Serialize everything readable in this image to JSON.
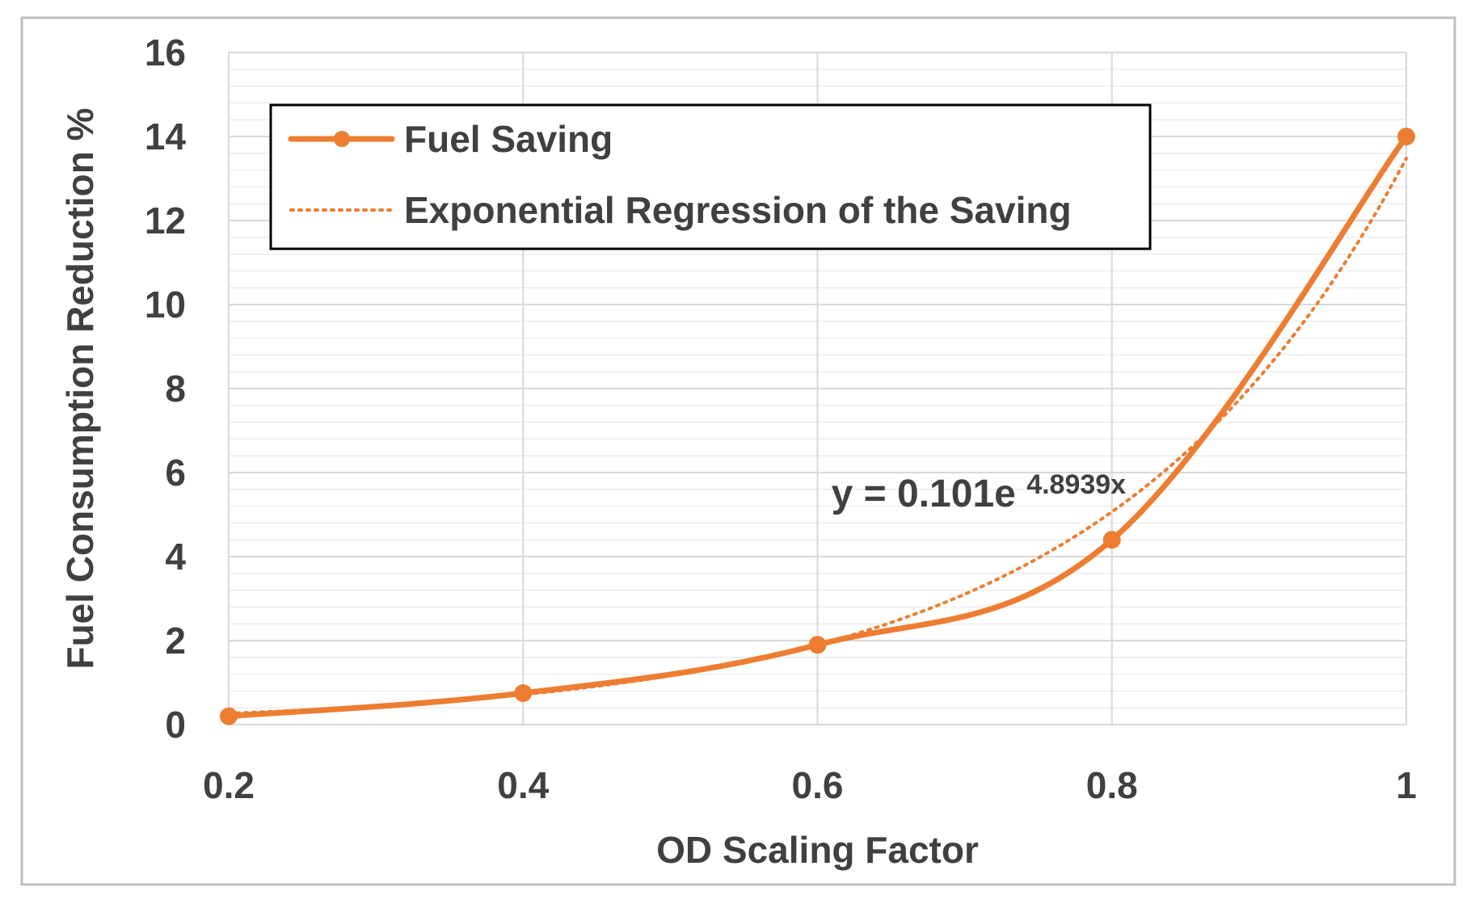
{
  "chart_data": {
    "type": "line",
    "title": "",
    "xlabel": "OD Scaling Factor",
    "ylabel": "Fuel Consumption Reduction %",
    "xlim": [
      0.2,
      1
    ],
    "ylim": [
      0,
      16
    ],
    "x_ticks": [
      0.2,
      0.4,
      0.6,
      0.8,
      1
    ],
    "x_tick_labels": [
      "0.2",
      "0.4",
      "0.6",
      "0.8",
      "1"
    ],
    "y_ticks": [
      0,
      2,
      4,
      6,
      8,
      10,
      12,
      14,
      16
    ],
    "y_tick_labels": [
      "0",
      "2",
      "4",
      "6",
      "8",
      "10",
      "12",
      "14",
      "16"
    ],
    "minor_y_step": 0.4,
    "grid": true,
    "legend_position": "top-left",
    "series": [
      {
        "name": "Fuel Saving",
        "style": "solid-markers",
        "color": "#ED7D31",
        "x": [
          0.2,
          0.4,
          0.6,
          0.8,
          1
        ],
        "y": [
          0.2,
          0.75,
          1.9,
          4.4,
          14.0
        ]
      },
      {
        "name": "Exponential Regression of the Saving",
        "style": "dotted",
        "color": "#ED7D31",
        "model": {
          "type": "exponential",
          "a": 0.101,
          "b": 4.8939
        }
      }
    ],
    "annotation": {
      "prefix": "y = 0.101e",
      "exponent": "4.8939x",
      "anchor_x": 0.7,
      "anchor_y": 5.1
    }
  },
  "colors": {
    "series": "#ED7D31",
    "grid": "#D9D9D9",
    "text": "#404040",
    "frame": "#BFBFBF"
  }
}
